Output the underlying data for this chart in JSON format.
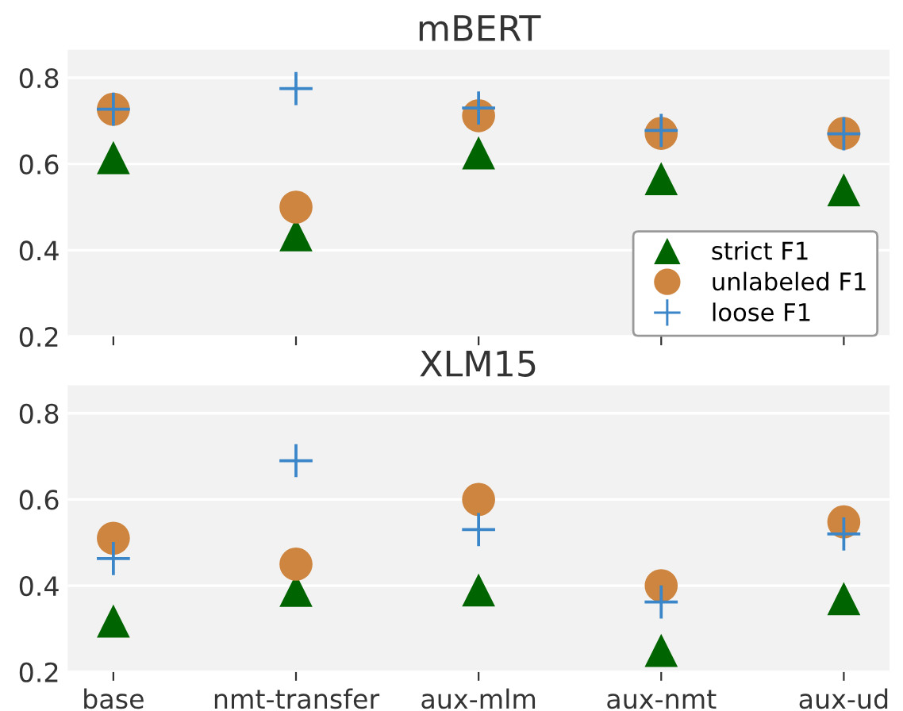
{
  "chart_data": [
    {
      "type": "scatter",
      "title": "mBERT",
      "categories": [
        null,
        null,
        null,
        null,
        null
      ],
      "ylim": [
        0.2,
        0.865
      ],
      "yticks": [
        0.2,
        0.4,
        0.6,
        0.8
      ],
      "grid": "y",
      "legend": "right",
      "tick_labels": "y",
      "series": [
        {
          "name": "strict F1",
          "color": "#006400",
          "marker": "triangle",
          "values": [
            0.615,
            0.436,
            0.626,
            0.566,
            0.54
          ]
        },
        {
          "name": "unlabeled F1",
          "color": "#cd853f",
          "marker": "circle",
          "values": [
            0.727,
            0.5,
            0.712,
            0.671,
            0.671
          ]
        },
        {
          "name": "loose F1",
          "color": "#3a86c8",
          "marker": "cross",
          "values": [
            0.727,
            0.775,
            0.73,
            0.678,
            0.67
          ]
        }
      ]
    },
    {
      "type": "scatter",
      "title": "XLM15",
      "categories": [
        "base",
        "nmt-transfer",
        "aux-mlm",
        "aux-nmt",
        "aux-ud"
      ],
      "ylim": [
        0.2,
        0.865
      ],
      "yticks": [
        0.2,
        0.4,
        0.6,
        0.8
      ],
      "grid": "y",
      "series": [
        {
          "color": "#006400",
          "marker": "triangle",
          "values": [
            0.318,
            0.389,
            0.39,
            0.25,
            0.37
          ]
        },
        {
          "color": "#cd853f",
          "marker": "circle",
          "values": [
            0.51,
            0.45,
            0.6,
            0.4,
            0.548
          ]
        },
        {
          "color": "#3a86c8",
          "marker": "cross",
          "values": [
            0.463,
            0.69,
            0.53,
            0.362,
            0.52
          ]
        }
      ]
    }
  ]
}
